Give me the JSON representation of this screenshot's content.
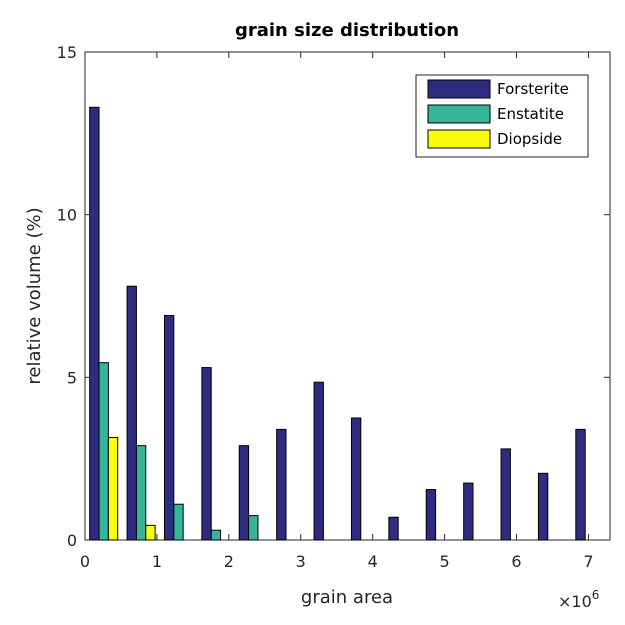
{
  "chart_data": {
    "type": "bar",
    "title": "grain size distribution",
    "xlabel": "grain area",
    "ylabel": "relative volume (%)",
    "x_multiplier_label": "×10",
    "x_multiplier_exponent": "6",
    "xlim": [
      0,
      7.3
    ],
    "ylim": [
      0,
      15
    ],
    "xticks": [
      0,
      1,
      2,
      3,
      4,
      5,
      6,
      7
    ],
    "yticks": [
      0,
      5,
      10,
      15
    ],
    "xtick_labels": [
      "0",
      "1",
      "2",
      "3",
      "4",
      "5",
      "6",
      "7"
    ],
    "ytick_labels": [
      "0",
      "5",
      "10",
      "15"
    ],
    "bin_width": 0.52,
    "legend_position": "top-right",
    "grid": false,
    "series": [
      {
        "name": "Forsterite",
        "color": "#2d2c80",
        "x": [
          0.13,
          0.65,
          1.17,
          1.69,
          2.21,
          2.73,
          3.25,
          3.77,
          4.29,
          4.81,
          5.33,
          5.85,
          6.37,
          6.89
        ],
        "values": [
          13.3,
          7.8,
          6.9,
          5.3,
          2.9,
          3.4,
          4.85,
          3.75,
          0.7,
          1.55,
          1.75,
          2.8,
          2.05,
          3.4
        ]
      },
      {
        "name": "Enstatite",
        "color": "#35b69a",
        "x": [
          0.26,
          0.78,
          1.3,
          1.82,
          2.34
        ],
        "values": [
          5.45,
          2.9,
          1.1,
          0.3,
          0.75
        ]
      },
      {
        "name": "Diopside",
        "color": "#f9fb0e",
        "x": [
          0.39,
          0.91
        ],
        "values": [
          3.15,
          0.45
        ]
      }
    ]
  }
}
